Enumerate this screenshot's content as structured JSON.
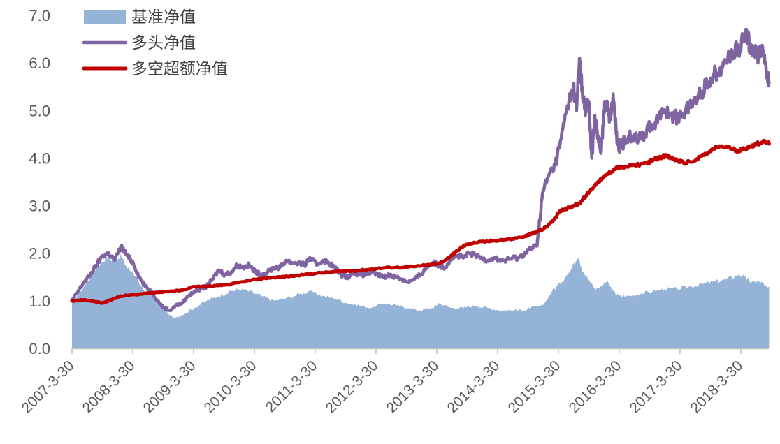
{
  "chart_data": {
    "type": "line",
    "title": "",
    "xlabel": "",
    "ylabel": "",
    "ylim": [
      0,
      7
    ],
    "yticks": [
      "0.0",
      "1.0",
      "2.0",
      "3.0",
      "4.0",
      "5.0",
      "6.0",
      "7.0"
    ],
    "xticks": [
      "2007-3-30",
      "2008-3-30",
      "2009-3-30",
      "2010-3-30",
      "2011-3-30",
      "2012-3-30",
      "2013-3-30",
      "2014-3-30",
      "2015-3-30",
      "2016-3-30",
      "2017-3-30",
      "2018-3-30"
    ],
    "legend_position": "top-left",
    "grid": false,
    "series": [
      {
        "name": "基准净值",
        "kind": "area",
        "color": "#95b3d7",
        "points": [
          [
            2007.0,
            1.0
          ],
          [
            2007.2,
            1.3
          ],
          [
            2007.4,
            1.7
          ],
          [
            2007.55,
            1.9
          ],
          [
            2007.7,
            1.85
          ],
          [
            2007.8,
            1.95
          ],
          [
            2007.9,
            1.7
          ],
          [
            2008.0,
            1.6
          ],
          [
            2008.1,
            1.35
          ],
          [
            2008.2,
            1.2
          ],
          [
            2008.3,
            1.15
          ],
          [
            2008.4,
            1.0
          ],
          [
            2008.5,
            0.85
          ],
          [
            2008.6,
            0.7
          ],
          [
            2008.65,
            0.65
          ],
          [
            2008.8,
            0.7
          ],
          [
            2009.0,
            0.85
          ],
          [
            2009.2,
            1.0
          ],
          [
            2009.4,
            1.1
          ],
          [
            2009.6,
            1.2
          ],
          [
            2009.75,
            1.25
          ],
          [
            2009.9,
            1.2
          ],
          [
            2010.1,
            1.1
          ],
          [
            2010.3,
            1.0
          ],
          [
            2010.5,
            1.05
          ],
          [
            2010.75,
            1.15
          ],
          [
            2010.9,
            1.2
          ],
          [
            2011.1,
            1.1
          ],
          [
            2011.3,
            1.05
          ],
          [
            2011.5,
            0.95
          ],
          [
            2011.7,
            0.9
          ],
          [
            2011.9,
            0.85
          ],
          [
            2012.1,
            0.95
          ],
          [
            2012.3,
            0.9
          ],
          [
            2012.5,
            0.85
          ],
          [
            2012.7,
            0.8
          ],
          [
            2012.9,
            0.85
          ],
          [
            2013.0,
            0.95
          ],
          [
            2013.2,
            0.85
          ],
          [
            2013.4,
            0.85
          ],
          [
            2013.6,
            0.9
          ],
          [
            2013.8,
            0.85
          ],
          [
            2014.0,
            0.8
          ],
          [
            2014.2,
            0.8
          ],
          [
            2014.4,
            0.8
          ],
          [
            2014.5,
            0.85
          ],
          [
            2014.7,
            0.9
          ],
          [
            2014.85,
            1.2
          ],
          [
            2015.0,
            1.4
          ],
          [
            2015.1,
            1.55
          ],
          [
            2015.2,
            1.8
          ],
          [
            2015.28,
            1.9
          ],
          [
            2015.35,
            1.6
          ],
          [
            2015.45,
            1.45
          ],
          [
            2015.55,
            1.25
          ],
          [
            2015.65,
            1.3
          ],
          [
            2015.75,
            1.4
          ],
          [
            2015.85,
            1.2
          ],
          [
            2015.95,
            1.1
          ],
          [
            2016.1,
            1.1
          ],
          [
            2016.3,
            1.15
          ],
          [
            2016.5,
            1.2
          ],
          [
            2016.7,
            1.25
          ],
          [
            2016.9,
            1.25
          ],
          [
            2017.1,
            1.3
          ],
          [
            2017.3,
            1.35
          ],
          [
            2017.5,
            1.4
          ],
          [
            2017.7,
            1.45
          ],
          [
            2017.9,
            1.55
          ],
          [
            2018.0,
            1.5
          ],
          [
            2018.1,
            1.4
          ],
          [
            2018.2,
            1.4
          ],
          [
            2018.3,
            1.35
          ],
          [
            2018.4,
            1.3
          ]
        ]
      },
      {
        "name": "多头净值",
        "kind": "line",
        "color": "#8064a2",
        "points": [
          [
            2007.0,
            1.0
          ],
          [
            2007.1,
            1.2
          ],
          [
            2007.2,
            1.4
          ],
          [
            2007.3,
            1.55
          ],
          [
            2007.4,
            1.75
          ],
          [
            2007.5,
            1.95
          ],
          [
            2007.6,
            2.0
          ],
          [
            2007.7,
            1.85
          ],
          [
            2007.8,
            2.15
          ],
          [
            2007.9,
            1.95
          ],
          [
            2008.0,
            1.8
          ],
          [
            2008.1,
            1.5
          ],
          [
            2008.2,
            1.3
          ],
          [
            2008.3,
            1.2
          ],
          [
            2008.4,
            1.0
          ],
          [
            2008.5,
            0.85
          ],
          [
            2008.6,
            0.8
          ],
          [
            2008.7,
            0.9
          ],
          [
            2008.8,
            0.95
          ],
          [
            2008.9,
            1.1
          ],
          [
            2009.0,
            1.2
          ],
          [
            2009.1,
            1.25
          ],
          [
            2009.2,
            1.3
          ],
          [
            2009.3,
            1.45
          ],
          [
            2009.4,
            1.65
          ],
          [
            2009.5,
            1.55
          ],
          [
            2009.6,
            1.6
          ],
          [
            2009.7,
            1.75
          ],
          [
            2009.8,
            1.7
          ],
          [
            2009.9,
            1.75
          ],
          [
            2010.0,
            1.6
          ],
          [
            2010.1,
            1.55
          ],
          [
            2010.2,
            1.6
          ],
          [
            2010.3,
            1.7
          ],
          [
            2010.4,
            1.7
          ],
          [
            2010.5,
            1.85
          ],
          [
            2010.6,
            1.8
          ],
          [
            2010.7,
            1.8
          ],
          [
            2010.8,
            1.75
          ],
          [
            2010.9,
            1.9
          ],
          [
            2011.0,
            1.75
          ],
          [
            2011.1,
            1.85
          ],
          [
            2011.2,
            1.8
          ],
          [
            2011.3,
            1.7
          ],
          [
            2011.4,
            1.55
          ],
          [
            2011.5,
            1.5
          ],
          [
            2011.6,
            1.6
          ],
          [
            2011.7,
            1.55
          ],
          [
            2011.8,
            1.55
          ],
          [
            2011.9,
            1.6
          ],
          [
            2012.0,
            1.55
          ],
          [
            2012.1,
            1.5
          ],
          [
            2012.2,
            1.55
          ],
          [
            2012.3,
            1.5
          ],
          [
            2012.4,
            1.45
          ],
          [
            2012.5,
            1.4
          ],
          [
            2012.6,
            1.45
          ],
          [
            2012.7,
            1.55
          ],
          [
            2012.8,
            1.7
          ],
          [
            2012.9,
            1.8
          ],
          [
            2013.0,
            1.75
          ],
          [
            2013.1,
            1.7
          ],
          [
            2013.2,
            1.9
          ],
          [
            2013.3,
            1.95
          ],
          [
            2013.4,
            1.9
          ],
          [
            2013.5,
            2.0
          ],
          [
            2013.6,
            1.95
          ],
          [
            2013.7,
            1.9
          ],
          [
            2013.8,
            1.85
          ],
          [
            2013.9,
            1.9
          ],
          [
            2014.0,
            1.85
          ],
          [
            2014.1,
            1.85
          ],
          [
            2014.2,
            1.9
          ],
          [
            2014.3,
            1.9
          ],
          [
            2014.4,
            2.0
          ],
          [
            2014.5,
            2.1
          ],
          [
            2014.6,
            2.15
          ],
          [
            2014.65,
            2.7
          ],
          [
            2014.7,
            3.3
          ],
          [
            2014.8,
            3.65
          ],
          [
            2014.9,
            3.85
          ],
          [
            2015.0,
            4.4
          ],
          [
            2015.1,
            5.1
          ],
          [
            2015.2,
            5.5
          ],
          [
            2015.25,
            5.0
          ],
          [
            2015.3,
            6.1
          ],
          [
            2015.35,
            5.3
          ],
          [
            2015.4,
            5.0
          ],
          [
            2015.45,
            5.2
          ],
          [
            2015.5,
            4.0
          ],
          [
            2015.55,
            4.9
          ],
          [
            2015.6,
            4.4
          ],
          [
            2015.65,
            4.1
          ],
          [
            2015.7,
            5.0
          ],
          [
            2015.75,
            5.2
          ],
          [
            2015.8,
            4.8
          ],
          [
            2015.85,
            5.35
          ],
          [
            2015.9,
            4.5
          ],
          [
            2015.95,
            4.2
          ],
          [
            2016.0,
            4.3
          ],
          [
            2016.1,
            4.45
          ],
          [
            2016.2,
            4.5
          ],
          [
            2016.3,
            4.4
          ],
          [
            2016.4,
            4.6
          ],
          [
            2016.5,
            4.7
          ],
          [
            2016.6,
            4.85
          ],
          [
            2016.7,
            5.0
          ],
          [
            2016.8,
            4.9
          ],
          [
            2016.9,
            4.85
          ],
          [
            2017.0,
            4.95
          ],
          [
            2017.1,
            5.1
          ],
          [
            2017.2,
            5.25
          ],
          [
            2017.3,
            5.4
          ],
          [
            2017.4,
            5.6
          ],
          [
            2017.5,
            5.75
          ],
          [
            2017.6,
            5.9
          ],
          [
            2017.7,
            6.05
          ],
          [
            2017.8,
            6.2
          ],
          [
            2017.9,
            6.3
          ],
          [
            2018.0,
            6.5
          ],
          [
            2018.05,
            6.6
          ],
          [
            2018.1,
            6.2
          ],
          [
            2018.15,
            6.35
          ],
          [
            2018.2,
            6.1
          ],
          [
            2018.25,
            6.3
          ],
          [
            2018.3,
            6.15
          ],
          [
            2018.35,
            5.9
          ],
          [
            2018.4,
            5.6
          ]
        ]
      },
      {
        "name": "多空超额净值",
        "kind": "line",
        "color": "#c00000",
        "points": [
          [
            2007.0,
            1.0
          ],
          [
            2007.2,
            1.02
          ],
          [
            2007.4,
            0.98
          ],
          [
            2007.5,
            0.95
          ],
          [
            2007.6,
            1.0
          ],
          [
            2007.7,
            1.05
          ],
          [
            2007.8,
            1.1
          ],
          [
            2008.0,
            1.13
          ],
          [
            2008.2,
            1.15
          ],
          [
            2008.4,
            1.18
          ],
          [
            2008.6,
            1.2
          ],
          [
            2008.8,
            1.22
          ],
          [
            2009.0,
            1.3
          ],
          [
            2009.2,
            1.3
          ],
          [
            2009.4,
            1.32
          ],
          [
            2009.6,
            1.35
          ],
          [
            2009.8,
            1.4
          ],
          [
            2010.0,
            1.45
          ],
          [
            2010.2,
            1.48
          ],
          [
            2010.4,
            1.5
          ],
          [
            2010.6,
            1.52
          ],
          [
            2010.8,
            1.55
          ],
          [
            2011.0,
            1.58
          ],
          [
            2011.2,
            1.6
          ],
          [
            2011.4,
            1.62
          ],
          [
            2011.6,
            1.63
          ],
          [
            2011.8,
            1.65
          ],
          [
            2012.0,
            1.68
          ],
          [
            2012.2,
            1.7
          ],
          [
            2012.4,
            1.7
          ],
          [
            2012.6,
            1.72
          ],
          [
            2012.8,
            1.75
          ],
          [
            2013.0,
            1.78
          ],
          [
            2013.1,
            1.85
          ],
          [
            2013.2,
            1.95
          ],
          [
            2013.3,
            2.05
          ],
          [
            2013.4,
            2.15
          ],
          [
            2013.5,
            2.2
          ],
          [
            2013.6,
            2.22
          ],
          [
            2013.8,
            2.25
          ],
          [
            2014.0,
            2.28
          ],
          [
            2014.2,
            2.3
          ],
          [
            2014.4,
            2.35
          ],
          [
            2014.5,
            2.4
          ],
          [
            2014.6,
            2.45
          ],
          [
            2014.7,
            2.5
          ],
          [
            2014.8,
            2.6
          ],
          [
            2014.9,
            2.75
          ],
          [
            2015.0,
            2.9
          ],
          [
            2015.1,
            2.95
          ],
          [
            2015.2,
            3.0
          ],
          [
            2015.3,
            3.05
          ],
          [
            2015.4,
            3.2
          ],
          [
            2015.5,
            3.35
          ],
          [
            2015.6,
            3.5
          ],
          [
            2015.7,
            3.6
          ],
          [
            2015.8,
            3.7
          ],
          [
            2015.9,
            3.8
          ],
          [
            2016.0,
            3.8
          ],
          [
            2016.2,
            3.85
          ],
          [
            2016.4,
            3.9
          ],
          [
            2016.5,
            3.95
          ],
          [
            2016.6,
            4.0
          ],
          [
            2016.7,
            4.05
          ],
          [
            2016.8,
            4.0
          ],
          [
            2016.9,
            3.95
          ],
          [
            2017.0,
            3.9
          ],
          [
            2017.2,
            3.95
          ],
          [
            2017.3,
            4.05
          ],
          [
            2017.4,
            4.1
          ],
          [
            2017.5,
            4.2
          ],
          [
            2017.6,
            4.25
          ],
          [
            2017.8,
            4.2
          ],
          [
            2017.9,
            4.15
          ],
          [
            2018.0,
            4.2
          ],
          [
            2018.1,
            4.25
          ],
          [
            2018.2,
            4.3
          ],
          [
            2018.3,
            4.35
          ],
          [
            2018.4,
            4.3
          ]
        ]
      }
    ]
  }
}
